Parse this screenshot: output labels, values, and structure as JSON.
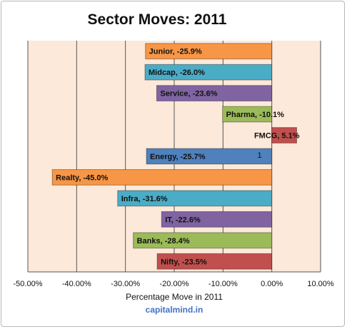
{
  "chart_data": {
    "type": "bar",
    "orientation": "horizontal",
    "title": "Sector Moves: 2011",
    "xlabel": "Percentage Move in 2011",
    "source": "capitalmind.in",
    "xlim": [
      -50,
      10
    ],
    "x_ticks": [
      "-50.00%",
      "-40.00%",
      "-30.00%",
      "-20.00%",
      "-10.00%",
      "0.00%",
      "10.00%"
    ],
    "x_tick_values": [
      -50,
      -40,
      -30,
      -20,
      -10,
      0,
      10
    ],
    "grid": "vertical",
    "plot_background": "#fde9d9",
    "categories": [
      "Junior",
      "Midcap",
      "Service",
      "Pharma",
      "FMCG",
      "Energy",
      "Realty",
      "Infra",
      "IT",
      "Banks",
      "Nifty"
    ],
    "values": [
      -25.9,
      -26.0,
      -23.6,
      -10.1,
      5.1,
      -25.7,
      -45.0,
      -31.6,
      -22.6,
      -28.4,
      -23.5
    ],
    "labels": [
      "Junior, -25.9%",
      "Midcap, -26.0%",
      "Service, -23.6%",
      "Pharma, -10.1%",
      "FMCG, 5.1%",
      "Energy, -25.7%",
      "Realty, -45.0%",
      "Infra, -31.6%",
      "IT, -22.6%",
      "Banks, -28.4%",
      "Nifty, -23.5%"
    ],
    "colors": [
      "#f79646",
      "#4bacc6",
      "#8064a2",
      "#9bbb59",
      "#c0504d",
      "#4f81bd",
      "#f79646",
      "#4bacc6",
      "#8064a2",
      "#9bbb59",
      "#c0504d"
    ],
    "annotation": {
      "category": "Energy",
      "text": "1"
    }
  }
}
